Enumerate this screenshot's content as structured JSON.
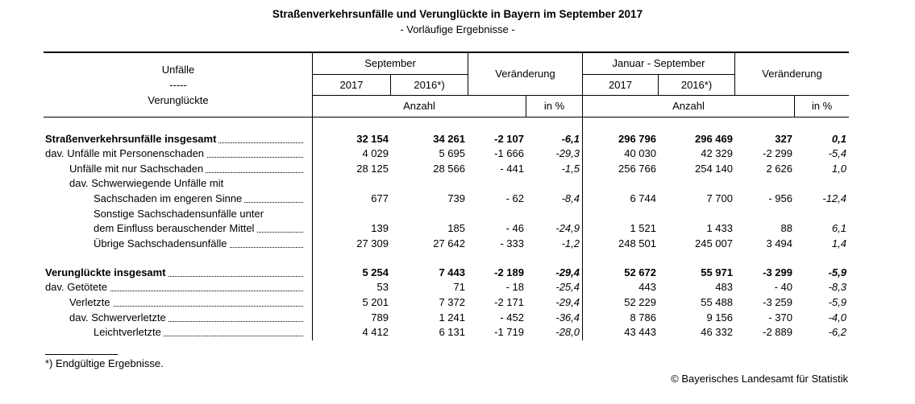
{
  "title": "Straßenverkehrsunfälle und Verunglückte in Bayern im September 2017",
  "subtitle": "- Vorläufige Ergebnisse -",
  "header": {
    "stub_line1": "Unfälle",
    "stub_line2": "-----",
    "stub_line3": "Verunglückte",
    "september": "September",
    "jan_sep": "Januar - September",
    "veraenderung": "Veränderung",
    "year_2017": "2017",
    "year_2016": "2016*)",
    "anzahl": "Anzahl",
    "in_pct": "in %"
  },
  "rows": [
    {
      "label": "Straßenverkehrsunfälle insgesamt",
      "indent": 0,
      "bold": true,
      "dots": true,
      "v": [
        "32 154",
        "34 261",
        "-2 107",
        "-6,1",
        "296 796",
        "296 469",
        "327",
        "0,1"
      ]
    },
    {
      "label": "dav. Unfälle mit Personenschaden",
      "indent": 0,
      "bold": false,
      "dots": true,
      "v": [
        "4 029",
        "5 695",
        "-1 666",
        "-29,3",
        "40 030",
        "42 329",
        "-2 299",
        "-5,4"
      ]
    },
    {
      "label": "Unfälle mit nur Sachschaden",
      "indent": 1,
      "bold": false,
      "dots": true,
      "v": [
        "28 125",
        "28 566",
        "- 441",
        "-1,5",
        "256 766",
        "254 140",
        "2 626",
        "1,0"
      ]
    },
    {
      "label": "dav. Schwerwiegende Unfälle mit",
      "indent": 1,
      "bold": false,
      "dots": false,
      "v": [
        "",
        "",
        "",
        "",
        "",
        "",
        "",
        ""
      ]
    },
    {
      "label": "Sachschaden im engeren Sinne",
      "indent": 2,
      "bold": false,
      "dots": true,
      "v": [
        "677",
        "739",
        "- 62",
        "-8,4",
        "6 744",
        "7 700",
        "- 956",
        "-12,4"
      ]
    },
    {
      "label": "Sonstige Sachschadensunfälle unter",
      "indent": 2,
      "bold": false,
      "dots": false,
      "v": [
        "",
        "",
        "",
        "",
        "",
        "",
        "",
        ""
      ]
    },
    {
      "label": "dem Einfluss berauschender Mittel",
      "indent": 2,
      "bold": false,
      "dots": true,
      "v": [
        "139",
        "185",
        "- 46",
        "-24,9",
        "1 521",
        "1 433",
        "88",
        "6,1"
      ]
    },
    {
      "label": "Übrige Sachschadensunfälle",
      "indent": 2,
      "bold": false,
      "dots": true,
      "v": [
        "27 309",
        "27 642",
        "- 333",
        "-1,2",
        "248 501",
        "245 007",
        "3 494",
        "1,4"
      ]
    },
    {
      "label": "Verunglückte insgesamt",
      "indent": 0,
      "bold": true,
      "dots": true,
      "v": [
        "5 254",
        "7 443",
        "-2 189",
        "-29,4",
        "52 672",
        "55 971",
        "-3 299",
        "-5,9"
      ]
    },
    {
      "label": "dav. Getötete",
      "indent": 0,
      "bold": false,
      "dots": true,
      "v": [
        "53",
        "71",
        "- 18",
        "-25,4",
        "443",
        "483",
        "- 40",
        "-8,3"
      ]
    },
    {
      "label": "Verletzte",
      "indent": 1,
      "bold": false,
      "dots": true,
      "v": [
        "5 201",
        "7 372",
        "-2 171",
        "-29,4",
        "52 229",
        "55 488",
        "-3 259",
        "-5,9"
      ]
    },
    {
      "label": "dav. Schwerverletzte",
      "indent": 1,
      "bold": false,
      "dots": true,
      "v": [
        "789",
        "1 241",
        "- 452",
        "-36,4",
        "8 786",
        "9 156",
        "- 370",
        "-4,0"
      ]
    },
    {
      "label": "Leichtverletzte",
      "indent": 2,
      "bold": false,
      "dots": true,
      "v": [
        "4 412",
        "6 131",
        "-1 719",
        "-28,0",
        "43 443",
        "46 332",
        "-2 889",
        "-6,2"
      ]
    }
  ],
  "footnote": "*) Endgültige Ergebnisse.",
  "copyright": "© Bayerisches Landesamt für Statistik"
}
